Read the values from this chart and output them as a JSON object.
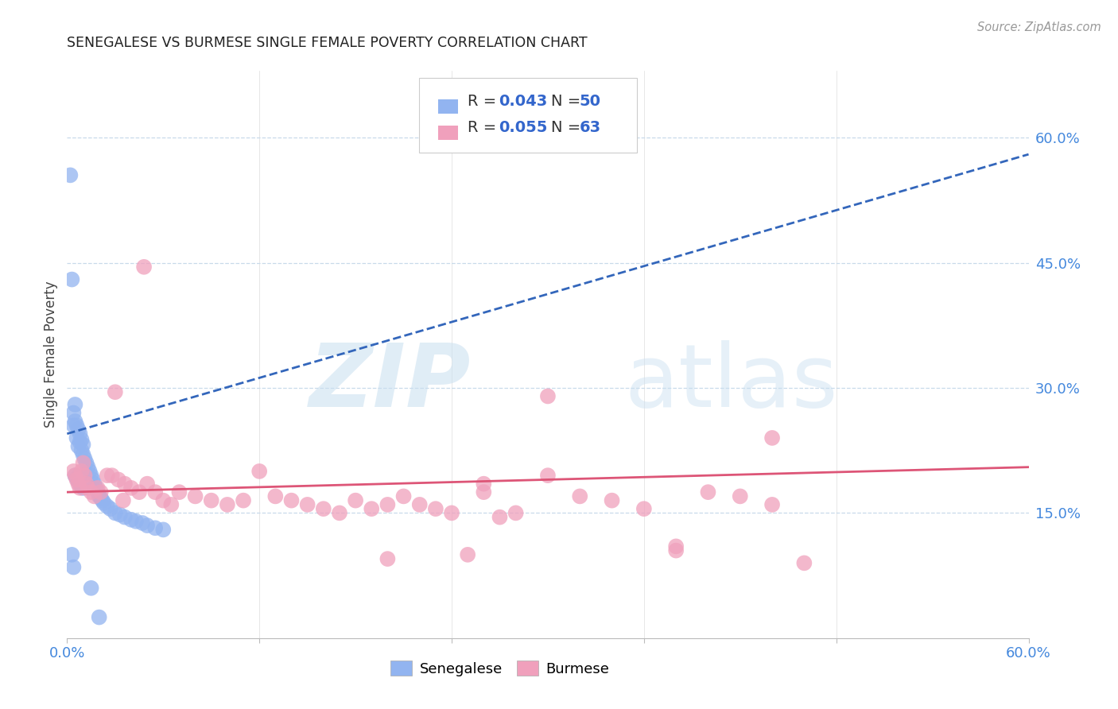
{
  "title": "SENEGALESE VS BURMESE SINGLE FEMALE POVERTY CORRELATION CHART",
  "source": "Source: ZipAtlas.com",
  "ylabel": "Single Female Poverty",
  "xlim": [
    0.0,
    0.6
  ],
  "ylim": [
    0.0,
    0.68
  ],
  "yticks": [
    0.15,
    0.3,
    0.45,
    0.6
  ],
  "ytick_labels": [
    "15.0%",
    "30.0%",
    "45.0%",
    "60.0%"
  ],
  "xticks": [
    0.0,
    0.12,
    0.24,
    0.36,
    0.48,
    0.6
  ],
  "xtick_labels": [
    "0.0%",
    "",
    "",
    "",
    "",
    "60.0%"
  ],
  "senegalese_R": "0.043",
  "senegalese_N": "50",
  "burmese_R": "0.055",
  "burmese_N": "63",
  "senegalese_color": "#92b4f0",
  "burmese_color": "#f0a0bc",
  "senegalese_line_color": "#3366bb",
  "burmese_line_color": "#dd5577",
  "background_color": "#ffffff",
  "grid_color": "#c8daea",
  "senegalese_x": [
    0.002,
    0.003,
    0.004,
    0.004,
    0.005,
    0.005,
    0.006,
    0.006,
    0.007,
    0.007,
    0.008,
    0.008,
    0.009,
    0.009,
    0.01,
    0.01,
    0.011,
    0.012,
    0.013,
    0.014,
    0.015,
    0.016,
    0.017,
    0.018,
    0.019,
    0.02,
    0.021,
    0.022,
    0.023,
    0.025,
    0.027,
    0.03,
    0.033,
    0.036,
    0.04,
    0.043,
    0.047,
    0.05,
    0.055,
    0.06,
    0.003,
    0.004,
    0.005,
    0.006,
    0.007,
    0.008,
    0.009,
    0.01,
    0.015,
    0.02
  ],
  "senegalese_y": [
    0.555,
    0.43,
    0.255,
    0.27,
    0.26,
    0.28,
    0.24,
    0.255,
    0.23,
    0.25,
    0.235,
    0.245,
    0.225,
    0.238,
    0.22,
    0.232,
    0.215,
    0.21,
    0.205,
    0.2,
    0.195,
    0.19,
    0.185,
    0.18,
    0.175,
    0.17,
    0.168,
    0.165,
    0.162,
    0.158,
    0.155,
    0.15,
    0.148,
    0.145,
    0.142,
    0.14,
    0.138,
    0.135,
    0.132,
    0.13,
    0.1,
    0.085,
    0.195,
    0.192,
    0.188,
    0.185,
    0.182,
    0.18,
    0.06,
    0.025
  ],
  "burmese_x": [
    0.004,
    0.005,
    0.006,
    0.007,
    0.008,
    0.009,
    0.01,
    0.011,
    0.012,
    0.013,
    0.015,
    0.017,
    0.019,
    0.021,
    0.025,
    0.028,
    0.032,
    0.036,
    0.04,
    0.045,
    0.05,
    0.055,
    0.06,
    0.065,
    0.07,
    0.08,
    0.09,
    0.1,
    0.11,
    0.12,
    0.13,
    0.14,
    0.15,
    0.16,
    0.17,
    0.18,
    0.19,
    0.2,
    0.21,
    0.22,
    0.23,
    0.24,
    0.25,
    0.26,
    0.27,
    0.28,
    0.3,
    0.32,
    0.34,
    0.36,
    0.38,
    0.4,
    0.42,
    0.44,
    0.46,
    0.03,
    0.035,
    0.2,
    0.3,
    0.44,
    0.26,
    0.38,
    0.048
  ],
  "burmese_y": [
    0.2,
    0.195,
    0.19,
    0.185,
    0.18,
    0.2,
    0.21,
    0.195,
    0.185,
    0.18,
    0.175,
    0.17,
    0.18,
    0.175,
    0.195,
    0.195,
    0.19,
    0.185,
    0.18,
    0.175,
    0.185,
    0.175,
    0.165,
    0.16,
    0.175,
    0.17,
    0.165,
    0.16,
    0.165,
    0.2,
    0.17,
    0.165,
    0.16,
    0.155,
    0.15,
    0.165,
    0.155,
    0.16,
    0.17,
    0.16,
    0.155,
    0.15,
    0.1,
    0.185,
    0.145,
    0.15,
    0.195,
    0.17,
    0.165,
    0.155,
    0.105,
    0.175,
    0.17,
    0.16,
    0.09,
    0.295,
    0.165,
    0.095,
    0.29,
    0.24,
    0.175,
    0.11,
    0.445
  ],
  "sen_trend_x": [
    0.0,
    0.6
  ],
  "sen_trend_y": [
    0.245,
    0.58
  ],
  "bur_trend_x": [
    0.0,
    0.6
  ],
  "bur_trend_y": [
    0.175,
    0.205
  ]
}
